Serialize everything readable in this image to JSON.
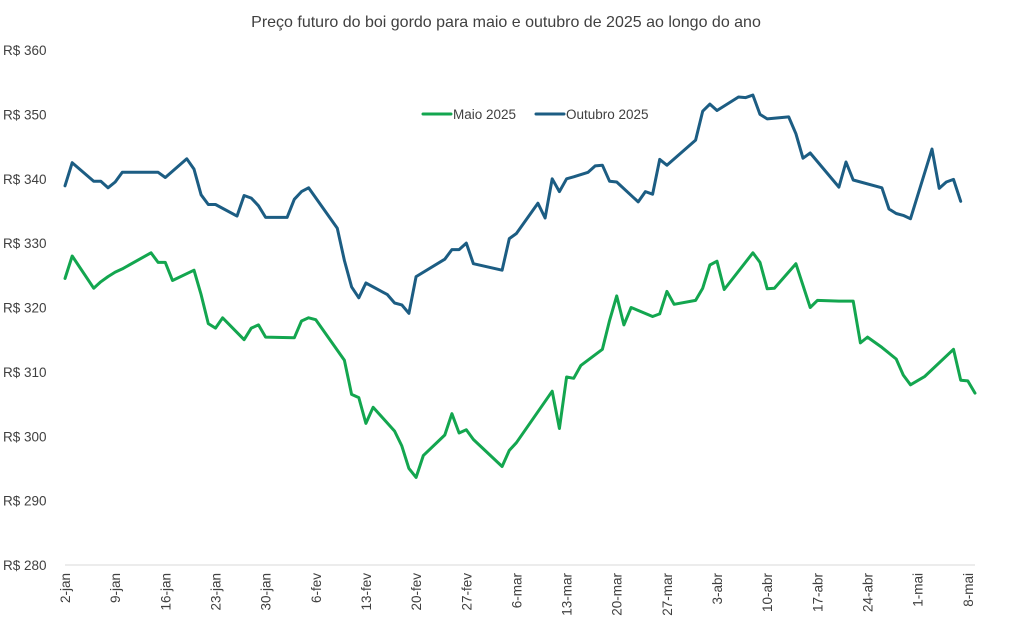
{
  "chart_data": {
    "type": "line",
    "title": "Preço futuro do boi gordo para maio e outubro de 2025 ao longo do ano",
    "xlabel": "",
    "ylabel": "",
    "ylim": [
      280,
      360
    ],
    "y_ticks": [
      280,
      290,
      300,
      310,
      320,
      330,
      340,
      350,
      360
    ],
    "y_tick_labels": [
      "R$ 280",
      "R$ 290",
      "R$ 300",
      "R$ 310",
      "R$ 320",
      "R$ 330",
      "R$ 340",
      "R$ 350",
      "R$ 360"
    ],
    "x_day_range": [
      2,
      129
    ],
    "x_ticks": [
      {
        "label": "2-jan",
        "day": 2
      },
      {
        "label": "9-jan",
        "day": 9
      },
      {
        "label": "16-jan",
        "day": 16
      },
      {
        "label": "23-jan",
        "day": 23
      },
      {
        "label": "30-jan",
        "day": 30
      },
      {
        "label": "6-fev",
        "day": 37
      },
      {
        "label": "13-fev",
        "day": 44
      },
      {
        "label": "20-fev",
        "day": 51
      },
      {
        "label": "27-fev",
        "day": 58
      },
      {
        "label": "6-mar",
        "day": 65
      },
      {
        "label": "13-mar",
        "day": 72
      },
      {
        "label": "20-mar",
        "day": 79
      },
      {
        "label": "27-mar",
        "day": 86
      },
      {
        "label": "3-abr",
        "day": 93
      },
      {
        "label": "10-abr",
        "day": 100
      },
      {
        "label": "17-abr",
        "day": 107
      },
      {
        "label": "24-abr",
        "day": 114
      },
      {
        "label": "1-mai",
        "day": 121
      },
      {
        "label": "8-mai",
        "day": 128
      }
    ],
    "grid": false,
    "legend_position": "top-center",
    "series": [
      {
        "name": "Maio 2025",
        "color": "#13A64F",
        "points": [
          [
            2,
            324.5
          ],
          [
            3,
            328.0
          ],
          [
            6,
            323.0
          ],
          [
            7,
            324.0
          ],
          [
            8,
            324.8
          ],
          [
            9,
            325.5
          ],
          [
            10,
            326.0
          ],
          [
            14,
            328.5
          ],
          [
            15,
            327.0
          ],
          [
            16,
            327.0
          ],
          [
            17,
            324.2
          ],
          [
            20,
            325.8
          ],
          [
            21,
            322.0
          ],
          [
            22,
            317.5
          ],
          [
            23,
            316.8
          ],
          [
            24,
            318.4
          ],
          [
            27,
            315.0
          ],
          [
            28,
            316.8
          ],
          [
            29,
            317.3
          ],
          [
            30,
            315.4
          ],
          [
            34,
            315.3
          ],
          [
            35,
            317.9
          ],
          [
            36,
            318.4
          ],
          [
            37,
            318.1
          ],
          [
            41,
            311.8
          ],
          [
            42,
            306.5
          ],
          [
            43,
            306.0
          ],
          [
            44,
            302.0
          ],
          [
            45,
            304.5
          ],
          [
            48,
            300.8
          ],
          [
            49,
            298.5
          ],
          [
            50,
            295.0
          ],
          [
            51,
            293.6
          ],
          [
            52,
            297.0
          ],
          [
            55,
            300.2
          ],
          [
            56,
            303.5
          ],
          [
            57,
            300.5
          ],
          [
            58,
            301.0
          ],
          [
            59,
            299.5
          ],
          [
            63,
            295.3
          ],
          [
            64,
            297.8
          ],
          [
            65,
            299.0
          ],
          [
            70,
            307.0
          ],
          [
            71,
            301.2
          ],
          [
            72,
            309.2
          ],
          [
            73,
            309.0
          ],
          [
            74,
            311.0
          ],
          [
            77,
            313.5
          ],
          [
            78,
            318.0
          ],
          [
            79,
            321.8
          ],
          [
            80,
            317.3
          ],
          [
            81,
            320.0
          ],
          [
            84,
            318.6
          ],
          [
            85,
            319.0
          ],
          [
            86,
            322.5
          ],
          [
            87,
            320.5
          ],
          [
            90,
            321.1
          ],
          [
            91,
            323.0
          ],
          [
            92,
            326.6
          ],
          [
            93,
            327.2
          ],
          [
            94,
            322.8
          ],
          [
            98,
            328.5
          ],
          [
            99,
            327.0
          ],
          [
            100,
            322.9
          ],
          [
            101,
            323.0
          ],
          [
            104,
            326.8
          ],
          [
            106,
            320.0
          ],
          [
            107,
            321.1
          ],
          [
            110,
            321.0
          ],
          [
            112,
            321.0
          ],
          [
            113,
            314.5
          ],
          [
            114,
            315.4
          ],
          [
            116,
            313.8
          ],
          [
            118,
            312.0
          ],
          [
            119,
            309.5
          ],
          [
            120,
            308.0
          ],
          [
            122,
            309.3
          ],
          [
            126,
            313.5
          ],
          [
            127,
            308.7
          ],
          [
            128,
            308.6
          ],
          [
            129,
            306.7
          ]
        ]
      },
      {
        "name": "Outubro 2025",
        "color": "#1C5D83",
        "points": [
          [
            2,
            338.9
          ],
          [
            3,
            342.5
          ],
          [
            6,
            339.6
          ],
          [
            7,
            339.6
          ],
          [
            8,
            338.6
          ],
          [
            9,
            339.5
          ],
          [
            10,
            341.0
          ],
          [
            14,
            341.0
          ],
          [
            15,
            341.0
          ],
          [
            16,
            340.2
          ],
          [
            19,
            343.1
          ],
          [
            20,
            341.5
          ],
          [
            21,
            337.5
          ],
          [
            22,
            336.0
          ],
          [
            23,
            336.0
          ],
          [
            26,
            334.2
          ],
          [
            27,
            337.4
          ],
          [
            28,
            337.0
          ],
          [
            29,
            335.8
          ],
          [
            30,
            334.0
          ],
          [
            33,
            334.0
          ],
          [
            34,
            336.8
          ],
          [
            35,
            338.0
          ],
          [
            36,
            338.6
          ],
          [
            40,
            332.3
          ],
          [
            41,
            327.3
          ],
          [
            42,
            323.2
          ],
          [
            43,
            321.5
          ],
          [
            44,
            323.8
          ],
          [
            47,
            322.0
          ],
          [
            48,
            320.7
          ],
          [
            49,
            320.4
          ],
          [
            50,
            319.1
          ],
          [
            51,
            324.8
          ],
          [
            55,
            327.5
          ],
          [
            56,
            329.0
          ],
          [
            57,
            329.0
          ],
          [
            58,
            330.0
          ],
          [
            59,
            326.8
          ],
          [
            63,
            325.8
          ],
          [
            64,
            330.7
          ],
          [
            65,
            331.5
          ],
          [
            68,
            336.2
          ],
          [
            69,
            333.9
          ],
          [
            70,
            340.0
          ],
          [
            71,
            338.0
          ],
          [
            72,
            340.0
          ],
          [
            73,
            340.3
          ],
          [
            75,
            341.0
          ],
          [
            76,
            342.0
          ],
          [
            77,
            342.1
          ],
          [
            78,
            339.6
          ],
          [
            79,
            339.5
          ],
          [
            82,
            336.4
          ],
          [
            83,
            338.0
          ],
          [
            84,
            337.6
          ],
          [
            85,
            343.0
          ],
          [
            86,
            342.1
          ],
          [
            90,
            346.0
          ],
          [
            91,
            350.5
          ],
          [
            92,
            351.6
          ],
          [
            93,
            350.6
          ],
          [
            96,
            352.7
          ],
          [
            97,
            352.6
          ],
          [
            98,
            353.0
          ],
          [
            99,
            350.0
          ],
          [
            100,
            349.3
          ],
          [
            103,
            349.6
          ],
          [
            104,
            347.0
          ],
          [
            105,
            343.2
          ],
          [
            106,
            344.0
          ],
          [
            110,
            338.7
          ],
          [
            111,
            342.6
          ],
          [
            112,
            339.8
          ],
          [
            116,
            338.6
          ],
          [
            117,
            335.3
          ],
          [
            118,
            334.6
          ],
          [
            119,
            334.3
          ],
          [
            120,
            333.8
          ],
          [
            123,
            344.6
          ],
          [
            124,
            338.5
          ],
          [
            125,
            339.5
          ],
          [
            126,
            339.9
          ],
          [
            127,
            336.5
          ]
        ]
      }
    ]
  }
}
